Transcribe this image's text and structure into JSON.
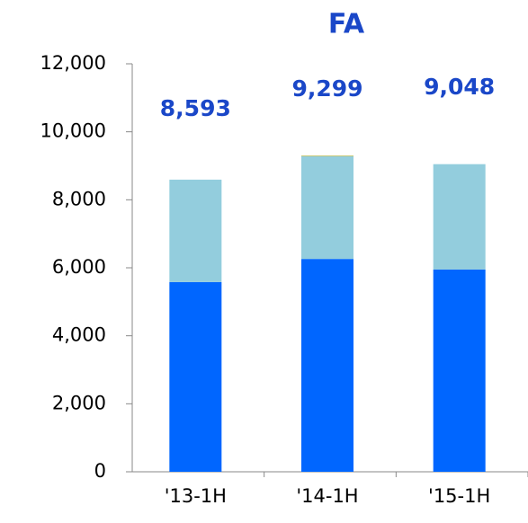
{
  "chart_data": {
    "type": "stacked_bar",
    "title": "FA",
    "categories": [
      "'13-1H",
      "'14-1H",
      "'15-1H"
    ],
    "series": [
      {
        "color": "#0066ff",
        "values": [
          5580,
          6260,
          5950
        ]
      },
      {
        "color": "#93cddd",
        "values": [
          3013,
          3019,
          3098
        ]
      },
      {
        "color": "#b5b84a",
        "values": [
          0,
          20,
          0
        ]
      }
    ],
    "totals": [
      8593,
      9299,
      9048
    ],
    "total_labels": [
      "8,593",
      "9,299",
      "9,048"
    ],
    "ylim": [
      0,
      12000
    ],
    "yticks": [
      0,
      {
        "value": 2000,
        "label": "2,000"
      },
      {
        "value": 4000,
        "label": "4,000"
      },
      {
        "value": 6000,
        "label": "6,000"
      },
      {
        "value": 8000,
        "label": "8,000"
      },
      {
        "value": 10000,
        "label": "10,000"
      },
      {
        "value": 12000,
        "label": "12,000"
      }
    ]
  }
}
